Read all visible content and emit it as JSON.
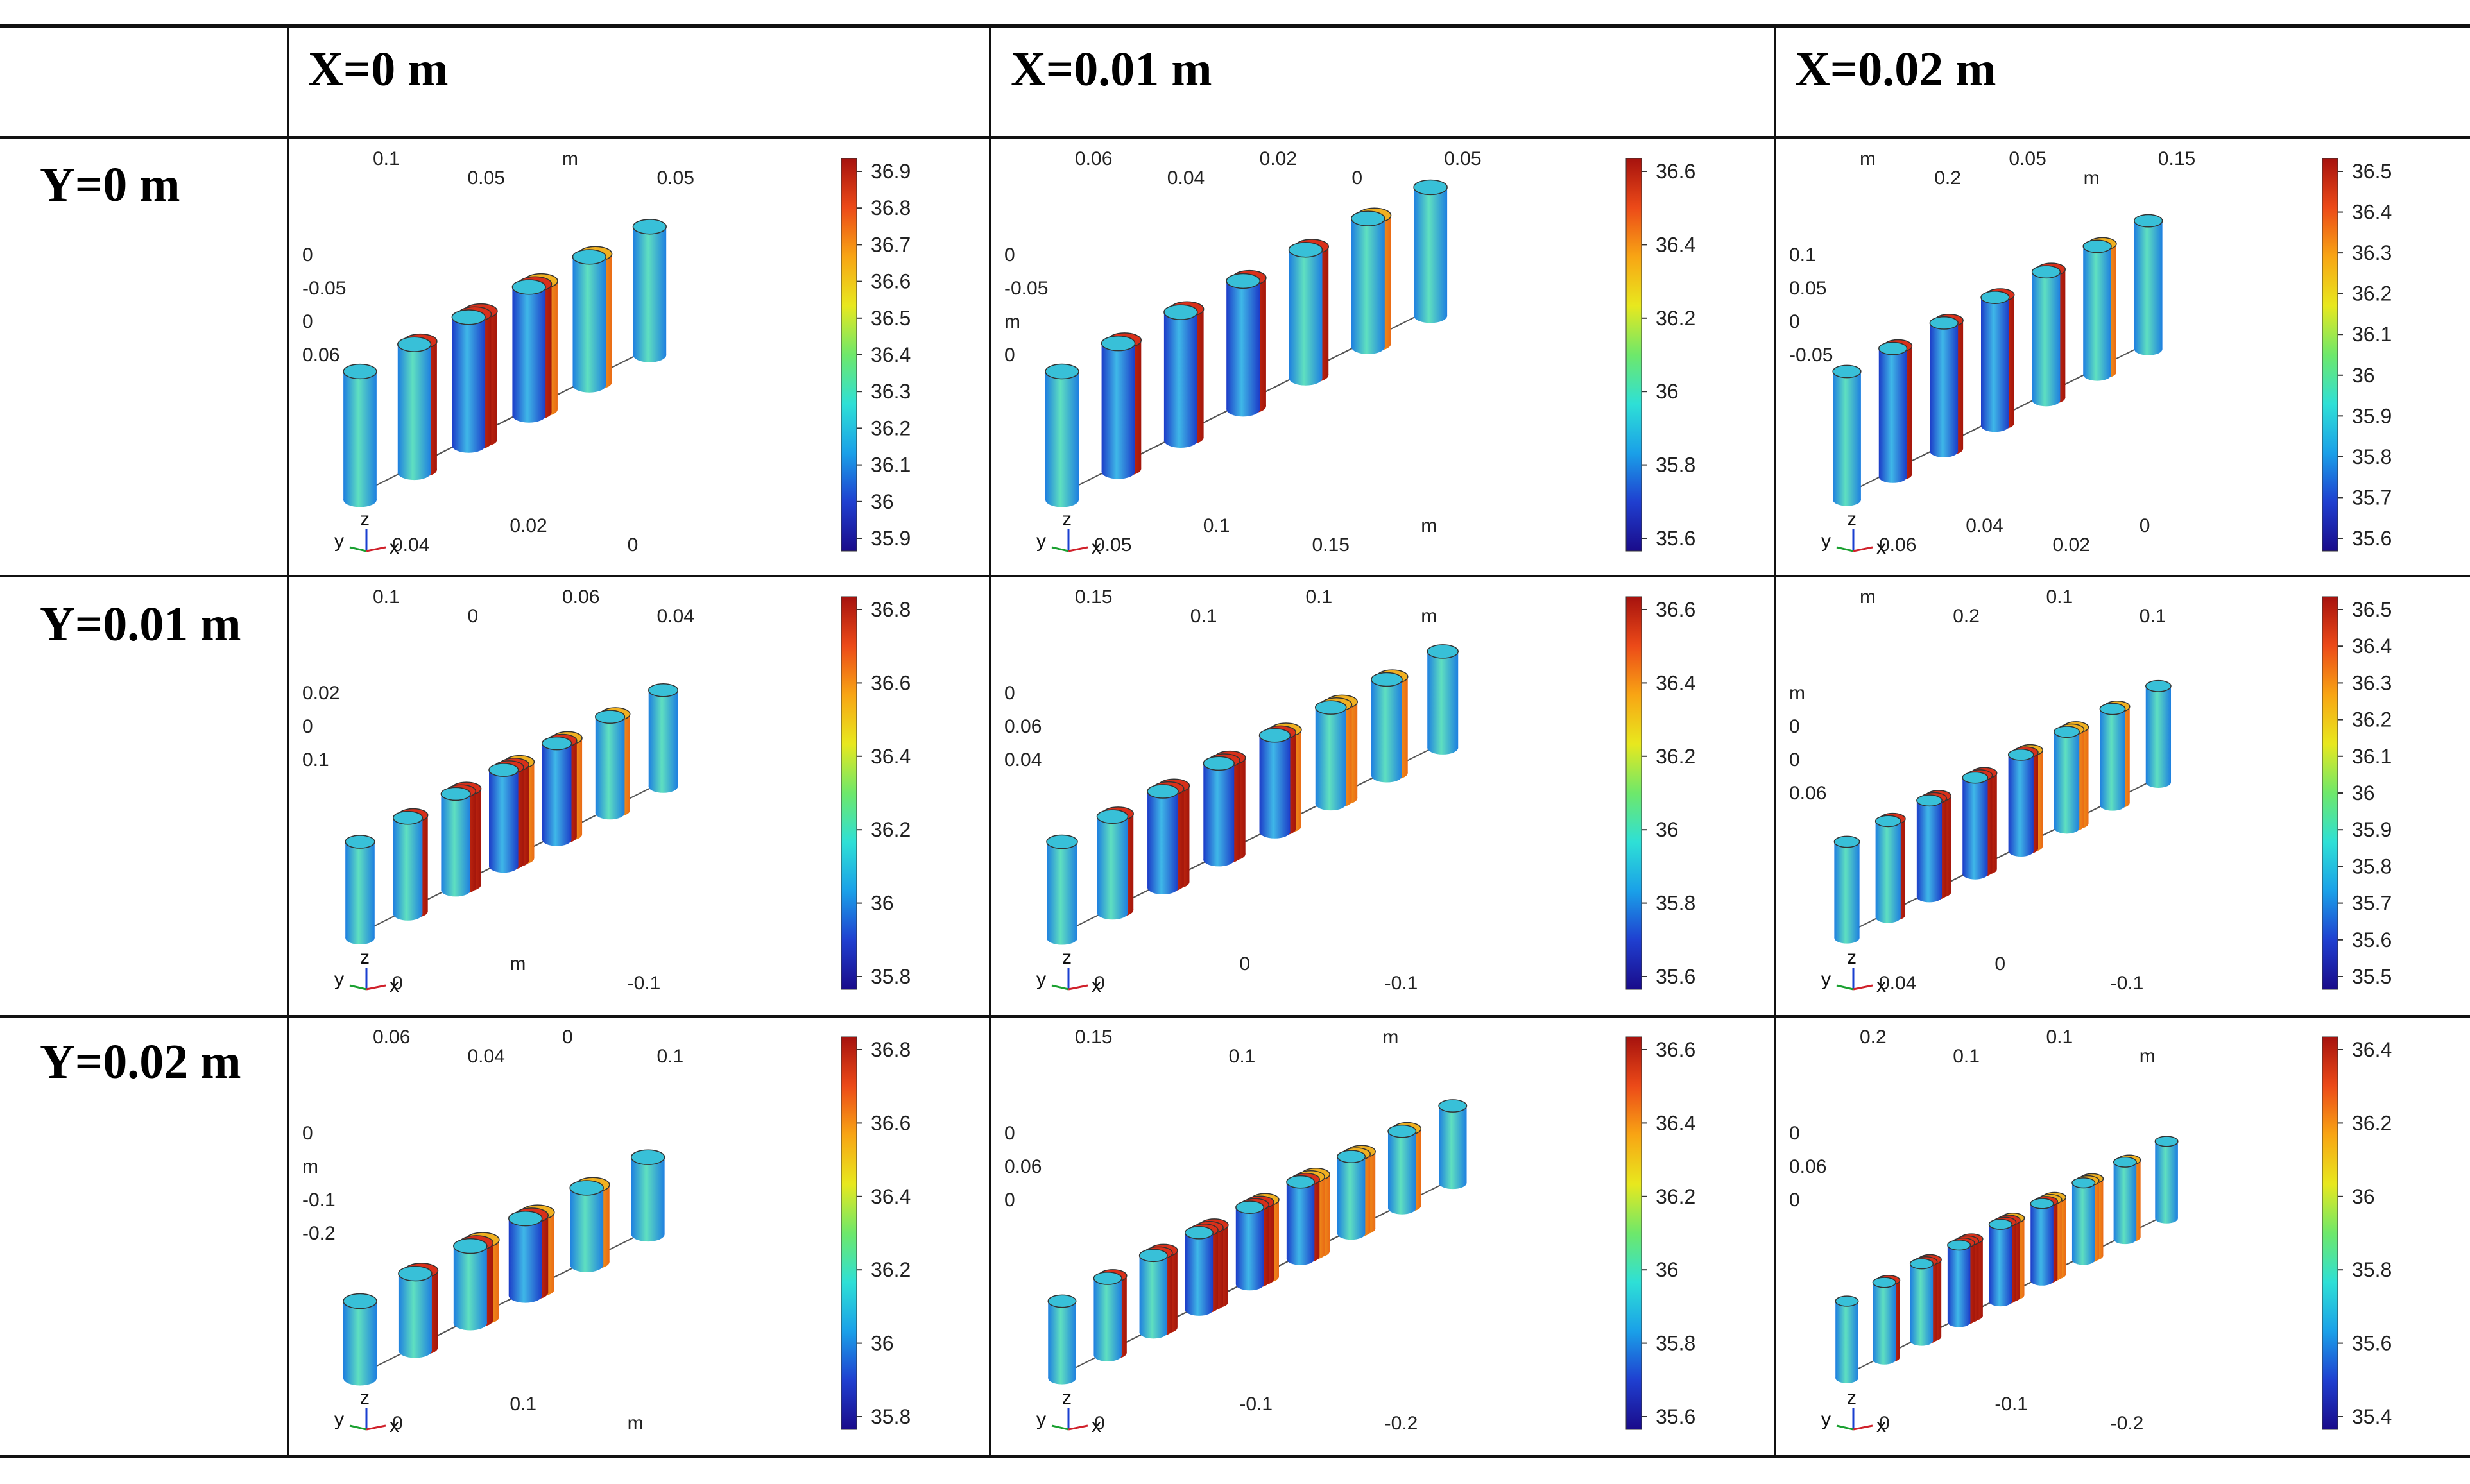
{
  "table": {
    "col_headers": [
      "X=0 m",
      "X=0.01 m",
      "X=0.02 m"
    ],
    "row_headers": [
      "Y=0 m",
      "Y=0.01 m",
      "Y=0.02 m"
    ]
  },
  "colorbar_gradient": [
    "#1a0b8a",
    "#1f3fd0",
    "#1aa0e8",
    "#2ee0d6",
    "#6ee86a",
    "#e8e81e",
    "#f8a514",
    "#ec4a18",
    "#a6120e"
  ],
  "panels": [
    {
      "id": "r0c0",
      "ticks": [
        "36.9",
        "36.8",
        "36.7",
        "36.6",
        "36.5",
        "36.4",
        "36.3",
        "36.2",
        "36.1",
        "36",
        "35.9"
      ],
      "labels": [
        "0.1",
        "0.05",
        "m",
        "0.05",
        "0",
        "-0.05",
        "0",
        "0.06",
        "0.04",
        "0.02",
        "0"
      ],
      "axes": {
        "y": "y",
        "z": "z",
        "x": "x"
      },
      "rows": 3,
      "cols": 4,
      "warm": 0.55
    },
    {
      "id": "r0c1",
      "ticks": [
        "36.6",
        "36.4",
        "36.2",
        "36",
        "35.8",
        "35.6"
      ],
      "labels": [
        "0.06",
        "0.04",
        "0.02",
        "0",
        "0.05",
        "0",
        "-0.05",
        "m",
        "0",
        "0.05",
        "0.1",
        "0.15",
        "m"
      ],
      "axes": {
        "y": "y",
        "z": "z",
        "x": "x"
      },
      "rows": 2,
      "cols": 6,
      "warm": 0.7
    },
    {
      "id": "r0c2",
      "ticks": [
        "36.5",
        "36.4",
        "36.3",
        "36.2",
        "36.1",
        "36",
        "35.9",
        "35.8",
        "35.7",
        "35.6"
      ],
      "labels": [
        "m",
        "0.2",
        "0.05",
        "m",
        "0.15",
        "0.1",
        "0.05",
        "0",
        "-0.05",
        "0.06",
        "0.04",
        "0.02",
        "0"
      ],
      "axes": {
        "y": "y",
        "z": "z",
        "x": "x"
      },
      "rows": 2,
      "cols": 6,
      "warm": 0.7
    },
    {
      "id": "r1c0",
      "ticks": [
        "36.8",
        "36.6",
        "36.4",
        "36.2",
        "36",
        "35.8"
      ],
      "labels": [
        "0.1",
        "0",
        "0.06",
        "0.04",
        "0.02",
        "0",
        "0.1",
        "0",
        "m",
        "-0.1"
      ],
      "axes": {
        "y": "y",
        "z": "z",
        "x": "x"
      },
      "rows": 4,
      "cols": 4,
      "warm": 0.55
    },
    {
      "id": "r1c1",
      "ticks": [
        "36.6",
        "36.4",
        "36.2",
        "36",
        "35.8",
        "35.6"
      ],
      "labels": [
        "0.15",
        "0.1",
        "0.1",
        "m",
        "0",
        "0.06",
        "0.04",
        "0",
        "0",
        "-0.1"
      ],
      "axes": {
        "y": "y",
        "z": "z",
        "x": "x"
      },
      "rows": 3,
      "cols": 6,
      "warm": 0.65
    },
    {
      "id": "r1c2",
      "ticks": [
        "36.5",
        "36.4",
        "36.3",
        "36.2",
        "36.1",
        "36",
        "35.9",
        "35.8",
        "35.7",
        "35.6",
        "35.5"
      ],
      "labels": [
        "m",
        "0.2",
        "0.1",
        "0.1",
        "m",
        "0",
        "0",
        "0.06",
        "0.04",
        "0",
        "-0.1"
      ],
      "axes": {
        "y": "y",
        "z": "z",
        "x": "x"
      },
      "rows": 3,
      "cols": 6,
      "warm": 0.65
    },
    {
      "id": "r2c0",
      "ticks": [
        "36.8",
        "36.6",
        "36.4",
        "36.2",
        "36",
        "35.8"
      ],
      "labels": [
        "0.06",
        "0.04",
        "0",
        "0.1",
        "0",
        "m",
        "-0.1",
        "-0.2",
        "0",
        "0.1",
        "m"
      ],
      "axes": {
        "y": "y",
        "z": "z",
        "x": "x"
      },
      "rows": 4,
      "cols": 3,
      "warm": 0.5
    },
    {
      "id": "r2c1",
      "ticks": [
        "36.6",
        "36.4",
        "36.2",
        "36",
        "35.8",
        "35.6"
      ],
      "labels": [
        "0.15",
        "0.1",
        "m",
        "0",
        "0.06",
        "0",
        "0",
        "-0.1",
        "-0.2"
      ],
      "axes": {
        "y": "y",
        "z": "z",
        "x": "x"
      },
      "rows": 4,
      "cols": 6,
      "warm": 0.65
    },
    {
      "id": "r2c2",
      "ticks": [
        "36.4",
        "36.2",
        "36",
        "35.8",
        "35.6",
        "35.4"
      ],
      "labels": [
        "0.2",
        "0.1",
        "0.1",
        "m",
        "0",
        "0.06",
        "0",
        "0",
        "-0.1",
        "-0.2"
      ],
      "axes": {
        "y": "y",
        "z": "z",
        "x": "x"
      },
      "rows": 4,
      "cols": 6,
      "warm": 0.65
    }
  ]
}
